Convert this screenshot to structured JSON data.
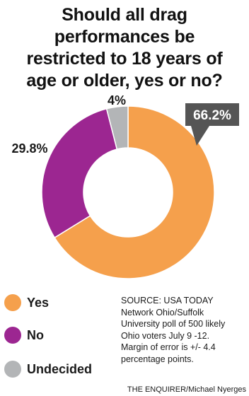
{
  "title": {
    "lines": [
      "Should all drag",
      "performances be",
      "restricted to 18 years of",
      "age or older, yes or no?"
    ]
  },
  "chart_data": {
    "type": "pie",
    "donut": true,
    "slices": [
      {
        "label": "Yes",
        "value": 66.2,
        "display": "66.2%",
        "color": "#f5a04c"
      },
      {
        "label": "No",
        "value": 29.8,
        "display": "29.8%",
        "color": "#9c2691"
      },
      {
        "label": "Undecided",
        "value": 4,
        "display": "4%",
        "color": "#b3b5b7"
      }
    ],
    "legend_position": "bottom-left"
  },
  "callout_color": "#555555",
  "source": {
    "lines": [
      "SOURCE: USA TODAY",
      "Network Ohio/Suffolk",
      "University poll of 500 likely",
      "Ohio voters July 9 -12.",
      "Margin of error is +/- 4.4",
      "percentage points."
    ]
  },
  "credit": "THE ENQUIRER/Michael Nyerges"
}
